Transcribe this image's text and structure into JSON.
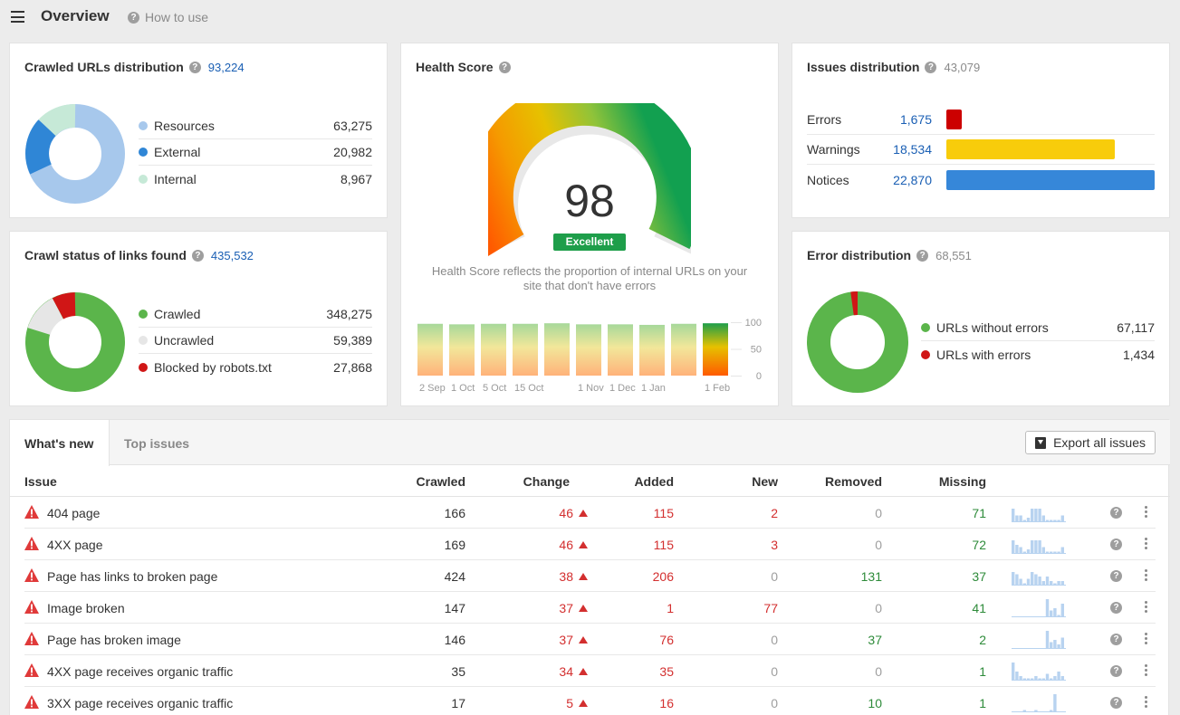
{
  "header": {
    "title": "Overview",
    "how_to_use": "How to use"
  },
  "crawled_urls": {
    "title": "Crawled URLs distribution",
    "total": "93,224",
    "items": [
      {
        "label": "Resources",
        "value": "63,275",
        "color": "#a7c8ec"
      },
      {
        "label": "External",
        "value": "20,982",
        "color": "#2f86d6"
      },
      {
        "label": "Internal",
        "value": "8,967",
        "color": "#c6e9d7"
      }
    ]
  },
  "crawl_status": {
    "title": "Crawl status of links found",
    "total": "435,532",
    "items": [
      {
        "label": "Crawled",
        "value": "348,275",
        "color": "#5bb54b"
      },
      {
        "label": "Uncrawled",
        "value": "59,389",
        "color": "#e6e6e6"
      },
      {
        "label": "Blocked by robots.txt",
        "value": "27,868",
        "color": "#d01616"
      }
    ]
  },
  "health": {
    "title": "Health Score",
    "score": "98",
    "score_value": 98,
    "badge": "Excellent",
    "description": "Health Score reflects the proportion of internal URLs on your site that don't have errors",
    "history": [
      {
        "x": "2 Sep",
        "value": 97
      },
      {
        "x": "1 Oct",
        "value": 96
      },
      {
        "x": "5 Oct",
        "value": 97
      },
      {
        "x": "15 Oct",
        "value": 97
      },
      {
        "x": "",
        "value": 98
      },
      {
        "x": "1 Nov",
        "value": 96
      },
      {
        "x": "1 Dec",
        "value": 96
      },
      {
        "x": "1 Jan",
        "value": 95
      },
      {
        "x": "",
        "value": 97
      },
      {
        "x": "1 Feb",
        "value": 98
      }
    ],
    "y_ticks": [
      "100",
      "50",
      "0"
    ]
  },
  "issues_distribution": {
    "title": "Issues distribution",
    "total": "43,079",
    "items": [
      {
        "label": "Errors",
        "value": "1,675",
        "count": 1675,
        "color": "#cc0000"
      },
      {
        "label": "Warnings",
        "value": "18,534",
        "count": 18534,
        "color": "#f8cc0b"
      },
      {
        "label": "Notices",
        "value": "22,870",
        "count": 22870,
        "color": "#3687d9"
      }
    ]
  },
  "error_distribution": {
    "title": "Error distribution",
    "total": "68,551",
    "items": [
      {
        "label": "URLs without errors",
        "value": "67,117",
        "color": "#5bb54b"
      },
      {
        "label": "URLs with errors",
        "value": "1,434",
        "color": "#d01616"
      }
    ]
  },
  "tabs": {
    "whats_new": "What's new",
    "top_issues": "Top issues"
  },
  "export_label": "Export all issues",
  "table": {
    "headers": {
      "issue": "Issue",
      "crawled": "Crawled",
      "change": "Change",
      "added": "Added",
      "new": "New",
      "removed": "Removed",
      "missing": "Missing"
    },
    "rows": [
      {
        "issue": "404 page",
        "crawled": "166",
        "change": "46",
        "added": "115",
        "new": "2",
        "removed": "0",
        "missing": "71",
        "trend": [
          6,
          3,
          3,
          1,
          2,
          6,
          6,
          6,
          3,
          1,
          1,
          1,
          1,
          3
        ]
      },
      {
        "issue": "4XX page",
        "crawled": "169",
        "change": "46",
        "added": "115",
        "new": "3",
        "removed": "0",
        "missing": "72",
        "trend": [
          6,
          4,
          3,
          1,
          2,
          6,
          6,
          6,
          3,
          1,
          1,
          1,
          1,
          3
        ]
      },
      {
        "issue": "Page has links to broken page",
        "crawled": "424",
        "change": "38",
        "added": "206",
        "new": "0",
        "removed": "131",
        "missing": "37",
        "trend": [
          6,
          5,
          3,
          1,
          3,
          6,
          5,
          4,
          2,
          4,
          2,
          1,
          2,
          2
        ]
      },
      {
        "issue": "Image broken",
        "crawled": "147",
        "change": "37",
        "added": "1",
        "new": "77",
        "removed": "0",
        "missing": "41",
        "trend": [
          0,
          0,
          0,
          0,
          0,
          0,
          0,
          0,
          0,
          8,
          3,
          4,
          1,
          6
        ]
      },
      {
        "issue": "Page has broken image",
        "crawled": "146",
        "change": "37",
        "added": "76",
        "new": "0",
        "removed": "37",
        "missing": "2",
        "trend": [
          0,
          0,
          0,
          0,
          0,
          0,
          0,
          0,
          0,
          8,
          3,
          4,
          2,
          5
        ]
      },
      {
        "issue": "4XX page receives organic traffic",
        "crawled": "35",
        "change": "34",
        "added": "35",
        "new": "0",
        "removed": "0",
        "missing": "1",
        "trend": [
          8,
          4,
          2,
          1,
          1,
          1,
          2,
          1,
          1,
          3,
          1,
          2,
          4,
          2
        ]
      },
      {
        "issue": "3XX page receives organic traffic",
        "crawled": "17",
        "change": "5",
        "added": "16",
        "new": "0",
        "removed": "10",
        "missing": "1",
        "trend": [
          0,
          0,
          0,
          1,
          0,
          0,
          1,
          0,
          0,
          0,
          1,
          8,
          0,
          0
        ]
      }
    ]
  }
}
